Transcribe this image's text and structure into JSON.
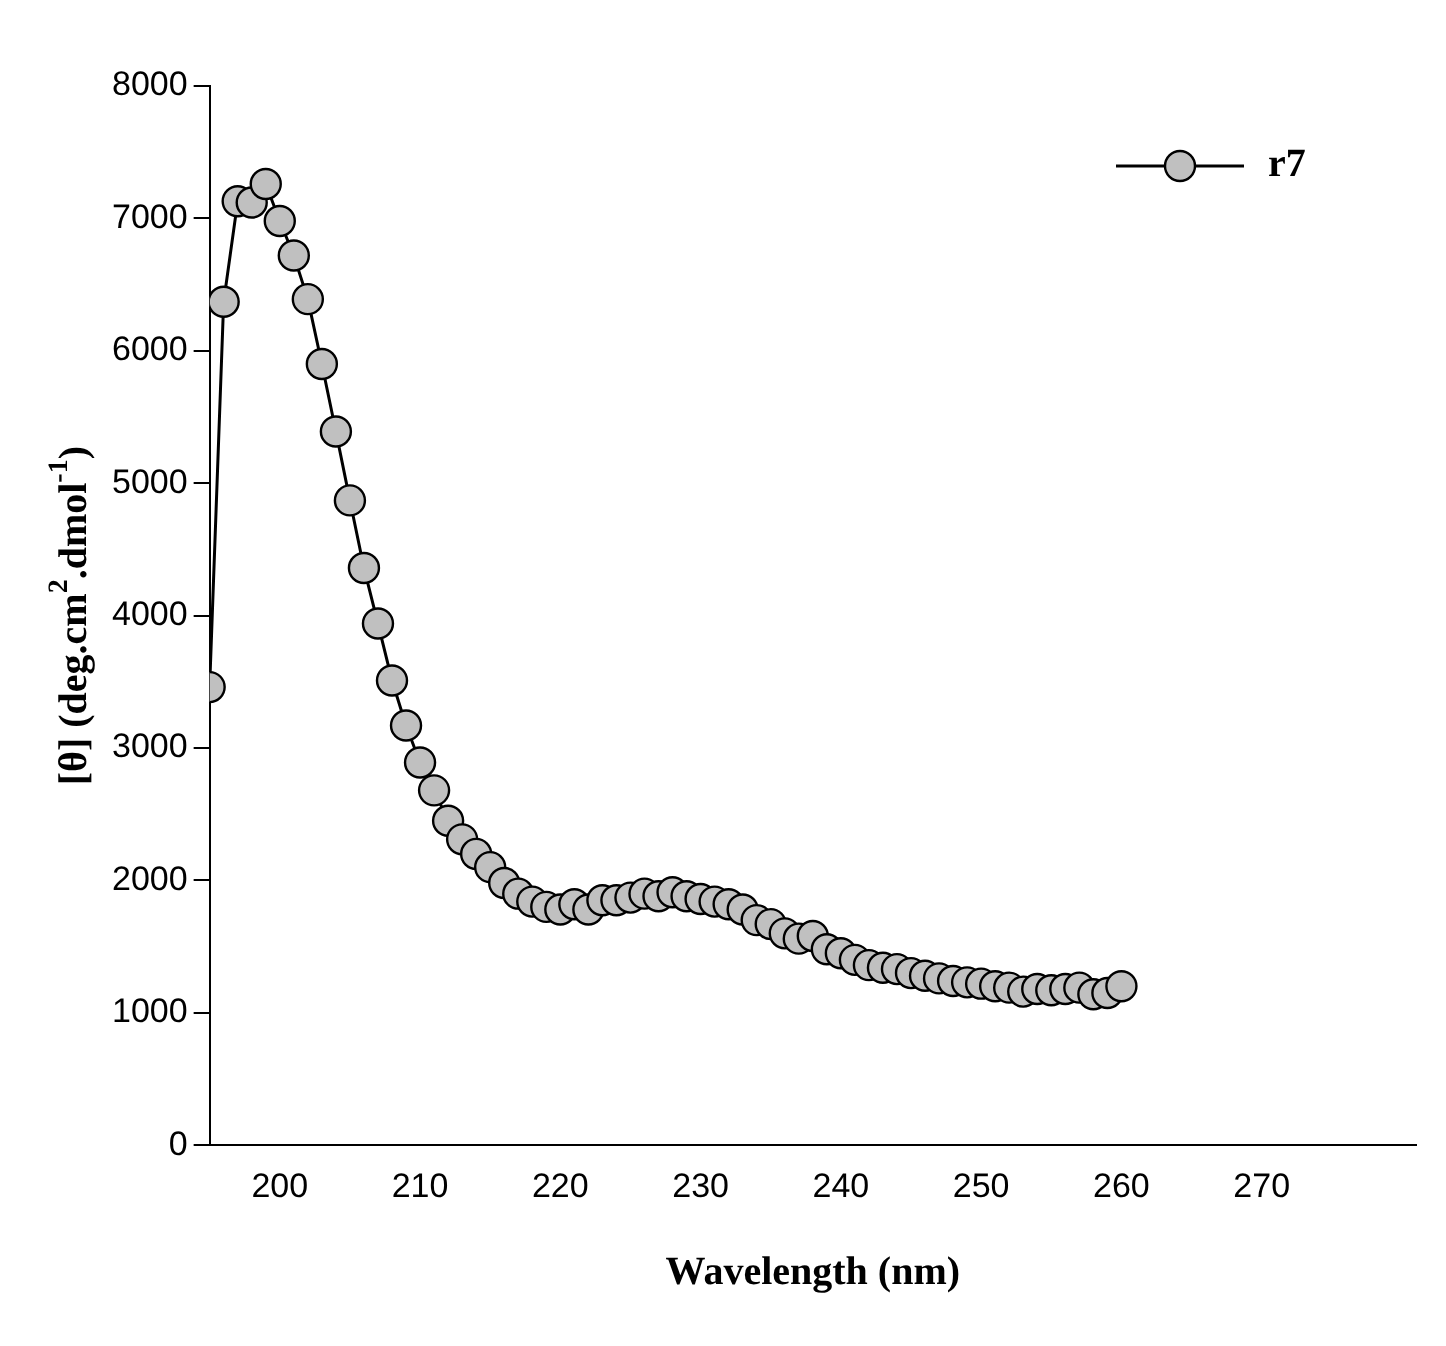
{
  "chart_data": {
    "type": "line",
    "xlabel": "Wavelength (nm)",
    "ylabel": "[θ] (deg.cm$^{2}$.dmol$^{-1}$)",
    "x": [
      195,
      196,
      197,
      198,
      199,
      200,
      201,
      202,
      203,
      204,
      205,
      206,
      207,
      208,
      209,
      210,
      211,
      212,
      213,
      214,
      215,
      216,
      217,
      218,
      219,
      220,
      221,
      222,
      223,
      224,
      225,
      226,
      227,
      228,
      229,
      230,
      231,
      232,
      233,
      234,
      235,
      236,
      237,
      238,
      239,
      240,
      241,
      242,
      243,
      244,
      245,
      246,
      247,
      248,
      249,
      250,
      251,
      252,
      253,
      254,
      255,
      256,
      257,
      258,
      259,
      260
    ],
    "series": [
      {
        "name": "r7",
        "color": "#c0c0c0",
        "values": [
          3460,
          6370,
          7130,
          7120,
          7260,
          6980,
          6720,
          6390,
          5900,
          5390,
          4870,
          4360,
          3940,
          3510,
          3170,
          2890,
          2680,
          2450,
          2310,
          2200,
          2100,
          1980,
          1900,
          1840,
          1800,
          1780,
          1820,
          1780,
          1850,
          1850,
          1870,
          1900,
          1880,
          1910,
          1880,
          1860,
          1840,
          1820,
          1780,
          1700,
          1670,
          1600,
          1560,
          1580,
          1480,
          1450,
          1400,
          1360,
          1340,
          1330,
          1300,
          1280,
          1260,
          1240,
          1230,
          1220,
          1200,
          1190,
          1160,
          1180,
          1170,
          1180,
          1190,
          1140,
          1150,
          1200
        ]
      }
    ],
    "xlim": [
      195,
      281
    ],
    "xticks": [
      200,
      210,
      220,
      230,
      240,
      250,
      260,
      270
    ],
    "ylim": [
      0,
      8000
    ],
    "yticks": [
      0,
      1000,
      2000,
      3000,
      4000,
      5000,
      6000,
      7000,
      8000
    ],
    "marker": "circle",
    "line_style": "solid",
    "legend": "top right",
    "grid": false
  }
}
